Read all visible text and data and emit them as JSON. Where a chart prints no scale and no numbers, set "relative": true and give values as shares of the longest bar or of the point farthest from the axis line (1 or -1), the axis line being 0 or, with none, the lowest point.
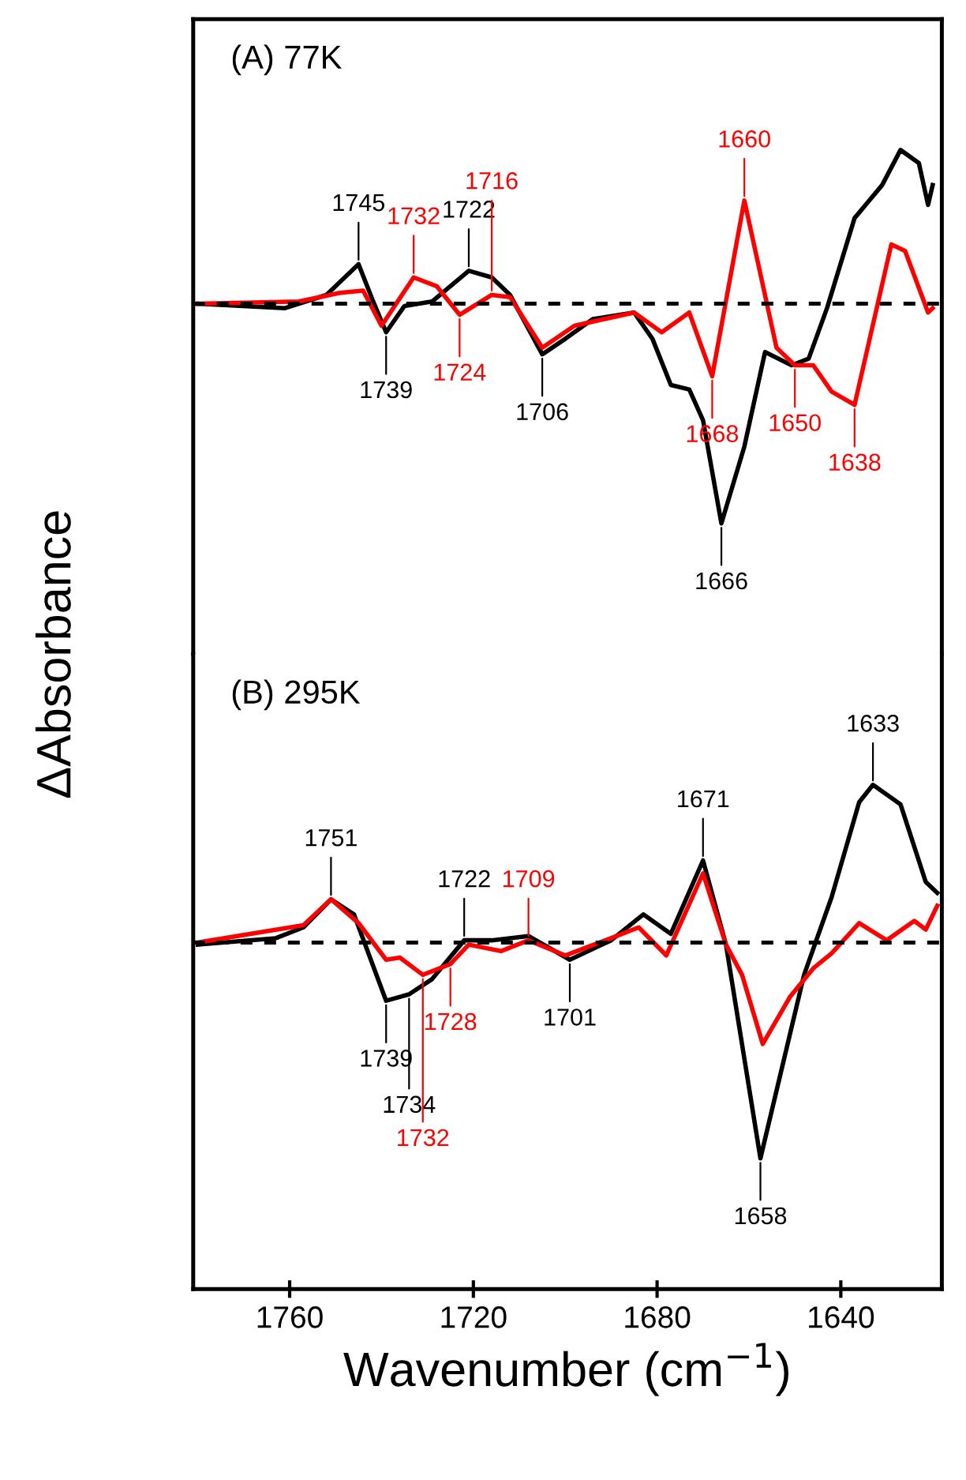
{
  "chart_data": [
    {
      "type": "line",
      "title": "(A) 77K",
      "ylabel": "ΔAbsorbance",
      "relative": true,
      "xlim": [
        1781,
        1618
      ],
      "tick_labels": false,
      "line_style": "solid",
      "ref_lines": [
        {
          "axis": "y",
          "value": 0,
          "color": "#000000",
          "line_style": "dashed"
        }
      ],
      "series": [
        {
          "color": "#000000",
          "x": [
            1780,
            1761,
            1752,
            1745,
            1742,
            1739,
            1735,
            1729,
            1721,
            1716,
            1712,
            1705,
            1700,
            1694,
            1685,
            1681,
            1677,
            1673,
            1670,
            1666,
            1661,
            1656.5,
            1650.7,
            1647,
            1643,
            1637,
            1631,
            1627,
            1623,
            1621,
            1620
          ],
          "values": [
            0,
            -0.02,
            0.04,
            0.18,
            0.02,
            -0.13,
            -0.01,
            0.01,
            0.15,
            0.12,
            0.04,
            -0.23,
            -0.16,
            -0.07,
            -0.04,
            -0.16,
            -0.37,
            -0.39,
            -0.53,
            -1,
            -0.65,
            -0.22,
            -0.28,
            -0.25,
            -0.02,
            0.39,
            0.54,
            0.7,
            0.64,
            0.45,
            0.54
          ]
        },
        {
          "color": "#ff0000",
          "x": [
            1780,
            1758,
            1749,
            1744,
            1740,
            1733,
            1728,
            1723,
            1716,
            1712,
            1705,
            1698,
            1685,
            1679,
            1673,
            1668,
            1661,
            1654,
            1650,
            1646,
            1642,
            1637,
            1629,
            1626,
            1621,
            1620
          ],
          "values": [
            0,
            0.01,
            0.05,
            0.06,
            -0.1,
            0.12,
            0.08,
            -0.05,
            0.04,
            0.03,
            -0.2,
            -0.1,
            -0.04,
            -0.13,
            -0.04,
            -0.33,
            0.47,
            -0.2,
            -0.28,
            -0.28,
            -0.4,
            -0.46,
            0.27,
            0.24,
            -0.04,
            -0.02
          ]
        }
      ],
      "annotations": [
        {
          "text": "1745",
          "x": 1745,
          "y": 0.18
        },
        {
          "text": "1732",
          "x": 1733,
          "y": 0.12
        },
        {
          "text": "1722",
          "x": 1721,
          "y": 0.15
        },
        {
          "text": "1716",
          "x": 1716,
          "y": 0.04
        },
        {
          "text": "1660",
          "x": 1661,
          "y": 0.47
        },
        {
          "text": "1739",
          "x": 1739,
          "y": -0.13
        },
        {
          "text": "1724",
          "x": 1723,
          "y": -0.05
        },
        {
          "text": "1706",
          "x": 1705,
          "y": -0.23
        },
        {
          "text": "1668",
          "x": 1668,
          "y": -0.33
        },
        {
          "text": "1650",
          "x": 1650,
          "y": -0.28
        },
        {
          "text": "1638",
          "x": 1637,
          "y": -0.46
        },
        {
          "text": "1666",
          "x": 1666,
          "y": -1
        }
      ]
    },
    {
      "type": "line",
      "title": "(B) 295K",
      "xlabel": "Wavenumber (cm$^{−1}$)",
      "relative": true,
      "xlim": [
        1781,
        1618
      ],
      "tick_labels": "x",
      "line_style": "solid",
      "xticks": [
        1760,
        1720,
        1680,
        1640
      ],
      "ref_lines": [
        {
          "axis": "y",
          "value": 0,
          "color": "#000000",
          "line_style": "dashed"
        }
      ],
      "series": [
        {
          "color": "#000000",
          "x": [
            1780,
            1763,
            1757,
            1751,
            1746,
            1739,
            1734,
            1729,
            1722,
            1716,
            1708,
            1699,
            1690,
            1683,
            1677,
            1670,
            1665,
            1657.5,
            1648,
            1642,
            1636,
            1633,
            1627,
            1621.5,
            1619
          ],
          "values": [
            -0.01,
            0.02,
            0.07,
            0.2,
            0.13,
            -0.27,
            -0.24,
            -0.17,
            0.01,
            0.01,
            0.03,
            -0.08,
            0.01,
            0.13,
            0.04,
            0.38,
            -0.01,
            -1,
            -0.15,
            0.21,
            0.65,
            0.73,
            0.64,
            0.28,
            0.23
          ]
        },
        {
          "color": "#ff0000",
          "x": [
            1780,
            1757,
            1751,
            1745,
            1739,
            1736,
            1731,
            1725,
            1721,
            1714,
            1708,
            1700,
            1690,
            1684,
            1678,
            1670,
            1665,
            1661.5,
            1657,
            1651,
            1646,
            1642,
            1636,
            1630,
            1624,
            1621.5,
            1619
          ],
          "values": [
            0,
            0.08,
            0.2,
            0.09,
            -0.08,
            -0.07,
            -0.15,
            -0.1,
            -0.01,
            -0.04,
            0.01,
            -0.06,
            0.02,
            0.07,
            -0.06,
            0.32,
            -0.01,
            -0.15,
            -0.47,
            -0.25,
            -0.12,
            -0.05,
            0.09,
            0.01,
            0.1,
            0.06,
            0.17
          ]
        }
      ],
      "annotations": [
        {
          "text": "1751",
          "x": 1751,
          "y": 0.2
        },
        {
          "text": "1722",
          "x": 1722,
          "y": 0.01
        },
        {
          "text": "1709",
          "x": 1708,
          "y": 0.01
        },
        {
          "text": "1671",
          "x": 1670,
          "y": 0.38
        },
        {
          "text": "1633",
          "x": 1633,
          "y": 0.73
        },
        {
          "text": "1739",
          "x": 1739,
          "y": -0.27
        },
        {
          "text": "1734",
          "x": 1734,
          "y": -0.24
        },
        {
          "text": "1728",
          "x": 1725,
          "y": -0.1
        },
        {
          "text": "1732",
          "x": 1731,
          "y": -0.15
        },
        {
          "text": "1701",
          "x": 1699,
          "y": -0.08
        },
        {
          "text": "1658",
          "x": 1657.5,
          "y": -1
        }
      ]
    }
  ]
}
